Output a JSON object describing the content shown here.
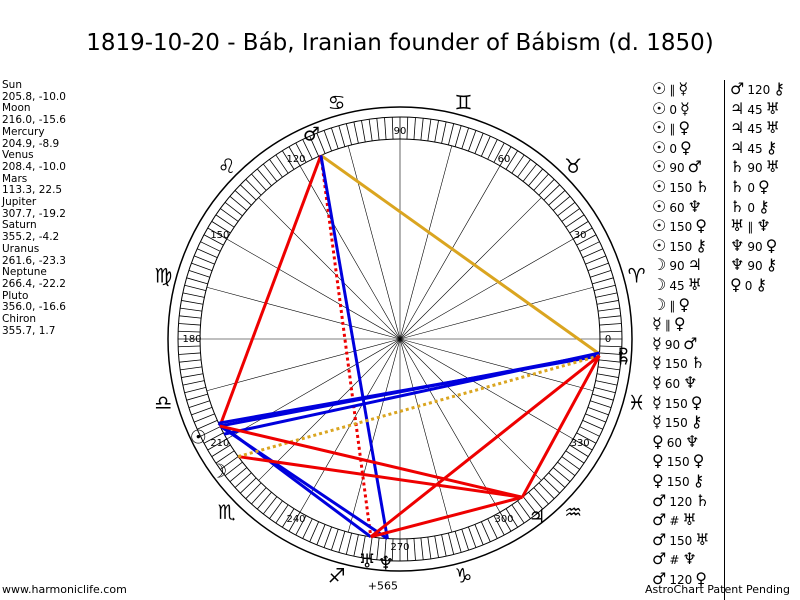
{
  "title": "1819-10-20 - Báb, Iranian founder of Bábism (d. 1850)",
  "planets": [
    {
      "name": "Sun",
      "coords": "205.8, -10.0"
    },
    {
      "name": "Moon",
      "coords": "216.0, -15.6"
    },
    {
      "name": "Mercury",
      "coords": "204.9, -8.9"
    },
    {
      "name": "Venus",
      "coords": "208.4, -10.0"
    },
    {
      "name": "Mars",
      "coords": "113.3, 22.5"
    },
    {
      "name": "Jupiter",
      "coords": "307.7, -19.2"
    },
    {
      "name": "Saturn",
      "coords": "355.2, -4.2"
    },
    {
      "name": "Uranus",
      "coords": "261.6, -23.3"
    },
    {
      "name": "Neptune",
      "coords": "266.4, -22.2"
    },
    {
      "name": "Pluto",
      "coords": "356.0, -16.6"
    },
    {
      "name": "Chiron",
      "coords": "355.7, 1.7"
    }
  ],
  "degree_labels": [
    {
      "text": "90",
      "deg": 90
    },
    {
      "text": "60",
      "deg": 60
    },
    {
      "text": "30",
      "deg": 30
    },
    {
      "text": "0",
      "deg": 0
    },
    {
      "text": "330",
      "deg": 330
    },
    {
      "text": "300",
      "deg": 300
    },
    {
      "text": "270",
      "deg": 270
    },
    {
      "text": "240",
      "deg": 240
    },
    {
      "text": "210",
      "deg": 210
    },
    {
      "text": "180",
      "deg": 180
    },
    {
      "text": "150",
      "deg": 150
    },
    {
      "text": "120",
      "deg": 120
    }
  ],
  "zodiac_signs": [
    {
      "glyph": "♈",
      "deg": 15
    },
    {
      "glyph": "♉",
      "deg": 45
    },
    {
      "glyph": "♊",
      "deg": 75
    },
    {
      "glyph": "♋",
      "deg": 105
    },
    {
      "glyph": "♌",
      "deg": 135
    },
    {
      "glyph": "♍",
      "deg": 165
    },
    {
      "glyph": "♎",
      "deg": 195
    },
    {
      "glyph": "♏",
      "deg": 225
    },
    {
      "glyph": "♐",
      "deg": 255
    },
    {
      "glyph": "♑",
      "deg": 285
    },
    {
      "glyph": "♒",
      "deg": 315
    },
    {
      "glyph": "♓",
      "deg": 345
    }
  ],
  "planet_glyphs": [
    {
      "glyph": "♂",
      "deg": 113.3
    },
    {
      "glyph": "☉",
      "deg": 205.8
    },
    {
      "glyph": "☽",
      "deg": 216.0
    },
    {
      "glyph": "♃",
      "deg": 307.7
    },
    {
      "glyph": "♅",
      "deg": 261.6
    },
    {
      "glyph": "♆",
      "deg": 266.4
    },
    {
      "glyph": "♇",
      "deg": 356.0
    },
    {
      "glyph": "♄",
      "deg": 355.2
    }
  ],
  "wheel_extra_label": "+565",
  "aspect_lines": [
    {
      "from": 113.3,
      "to": 355.7,
      "color": "#daa520",
      "style": "solid",
      "width": 3
    },
    {
      "from": 113.3,
      "to": 205.8,
      "color": "#ee0000",
      "style": "solid",
      "width": 3
    },
    {
      "from": 113.3,
      "to": 261.6,
      "color": "#ee0000",
      "style": "dotted",
      "width": 3
    },
    {
      "from": 113.3,
      "to": 266.4,
      "color": "#0000dd",
      "style": "solid",
      "width": 3
    },
    {
      "from": 205.8,
      "to": 355.7,
      "color": "#0000dd",
      "style": "solid",
      "width": 3
    },
    {
      "from": 204.9,
      "to": 355.2,
      "color": "#0000dd",
      "style": "solid",
      "width": 3
    },
    {
      "from": 208.4,
      "to": 356.0,
      "color": "#0000dd",
      "style": "solid",
      "width": 3
    },
    {
      "from": 205.8,
      "to": 266.4,
      "color": "#0000dd",
      "style": "solid",
      "width": 3
    },
    {
      "from": 204.9,
      "to": 261.6,
      "color": "#0000dd",
      "style": "solid",
      "width": 3
    },
    {
      "from": 216.0,
      "to": 307.7,
      "color": "#ee0000",
      "style": "solid",
      "width": 3
    },
    {
      "from": 216.0,
      "to": 355.2,
      "color": "#daa520",
      "style": "dotted",
      "width": 3
    },
    {
      "from": 307.7,
      "to": 355.2,
      "color": "#ee0000",
      "style": "solid",
      "width": 3
    },
    {
      "from": 307.7,
      "to": 261.6,
      "color": "#ee0000",
      "style": "solid",
      "width": 3
    },
    {
      "from": 205.8,
      "to": 307.7,
      "color": "#ee0000",
      "style": "solid",
      "width": 3
    },
    {
      "from": 261.6,
      "to": 355.2,
      "color": "#ee0000",
      "style": "solid",
      "width": 3
    }
  ],
  "aspect_grid_left": [
    {
      "p1": "☉",
      "asp": "∥",
      "p2": "☿"
    },
    {
      "p1": "☉",
      "asp": "0",
      "p2": "☿"
    },
    {
      "p1": "☉",
      "asp": "∥",
      "p2": "♀"
    },
    {
      "p1": "☉",
      "asp": "0",
      "p2": "♀"
    },
    {
      "p1": "☉",
      "asp": "90",
      "p2": "♂"
    },
    {
      "p1": "☉",
      "asp": "150",
      "p2": "♄"
    },
    {
      "p1": "☉",
      "asp": "60",
      "p2": "♆"
    },
    {
      "p1": "☉",
      "asp": "150",
      "p2": "♀"
    },
    {
      "p1": "☉",
      "asp": "150",
      "p2": "⚷"
    },
    {
      "p1": "☽",
      "asp": "90",
      "p2": "♃"
    },
    {
      "p1": "☽",
      "asp": "45",
      "p2": "♅"
    },
    {
      "p1": "☽",
      "asp": "∥",
      "p2": "♀"
    },
    {
      "p1": "☿",
      "asp": "∥",
      "p2": "♀"
    },
    {
      "p1": "☿",
      "asp": "90",
      "p2": "♂"
    },
    {
      "p1": "☿",
      "asp": "150",
      "p2": "♄"
    },
    {
      "p1": "☿",
      "asp": "60",
      "p2": "♆"
    },
    {
      "p1": "☿",
      "asp": "150",
      "p2": "♀"
    },
    {
      "p1": "☿",
      "asp": "150",
      "p2": "⚷"
    },
    {
      "p1": "♀",
      "asp": "60",
      "p2": "♆"
    },
    {
      "p1": "♀",
      "asp": "150",
      "p2": "♀"
    },
    {
      "p1": "♀",
      "asp": "150",
      "p2": "⚷"
    },
    {
      "p1": "♂",
      "asp": "120",
      "p2": "♄"
    },
    {
      "p1": "♂",
      "asp": "#",
      "p2": "♅"
    },
    {
      "p1": "♂",
      "asp": "150",
      "p2": "♅"
    },
    {
      "p1": "♂",
      "asp": "#",
      "p2": "♆"
    },
    {
      "p1": "♂",
      "asp": "120",
      "p2": "♀"
    }
  ],
  "aspect_grid_right": [
    {
      "p1": "♂",
      "asp": "120",
      "p2": "⚷"
    },
    {
      "p1": "♃",
      "asp": "45",
      "p2": "♅"
    },
    {
      "p1": "♃",
      "asp": "45",
      "p2": "♅"
    },
    {
      "p1": "♃",
      "asp": "45",
      "p2": "⚷"
    },
    {
      "p1": "♄",
      "asp": "90",
      "p2": "♅"
    },
    {
      "p1": "♄",
      "asp": "0",
      "p2": "♀"
    },
    {
      "p1": "♄",
      "asp": "0",
      "p2": "⚷"
    },
    {
      "p1": "♅",
      "asp": "∥",
      "p2": "♆"
    },
    {
      "p1": "♆",
      "asp": "90",
      "p2": "♀"
    },
    {
      "p1": "♆",
      "asp": "90",
      "p2": "⚷"
    },
    {
      "p1": "♀",
      "asp": "0",
      "p2": "⚷"
    }
  ],
  "footer": {
    "left": "www.harmoniclife.com",
    "right": "AstroChart Patent Pending"
  }
}
